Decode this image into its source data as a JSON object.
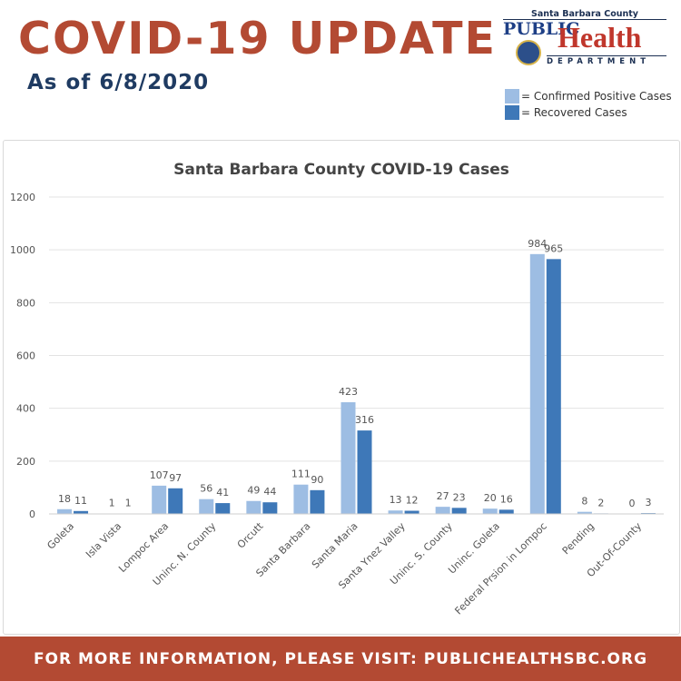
{
  "header": {
    "title": "COVID-19 UPDATE",
    "subtitle": "As of 6/8/2020"
  },
  "logo": {
    "county": "Santa Barbara County",
    "public": "PUBLIC",
    "health": "Health",
    "department": "DEPARTMENT"
  },
  "legend": {
    "confirmed": "= Confirmed Positive Cases",
    "recovered": "= Recovered Cases"
  },
  "colors": {
    "confirmed": "#9dbde3",
    "recovered": "#3e78b8",
    "brand_red": "#b34a33",
    "brand_navy": "#1f3b62"
  },
  "chart_data": {
    "type": "bar",
    "title": "Santa Barbara County COVID-19 Cases",
    "xlabel": "",
    "ylabel": "",
    "ylim": [
      0,
      1200
    ],
    "yticks": [
      0,
      200,
      400,
      600,
      800,
      1000,
      1200
    ],
    "grid": true,
    "categories": [
      "Goleta",
      "Isla Vista",
      "Lompoc Area",
      "Uninc. N. County",
      "Orcutt",
      "Santa Barbara",
      "Santa Maria",
      "Santa Ynez Valley",
      "Uninc. S. County",
      "Uninc. Goleta",
      "Federal Prsion in Lompoc",
      "Pending",
      "Out-Of-County"
    ],
    "series": [
      {
        "key": "confirmed",
        "values": [
          18,
          1,
          107,
          56,
          49,
          111,
          423,
          13,
          27,
          20,
          984,
          8,
          0
        ]
      },
      {
        "key": "recovered",
        "values": [
          11,
          1,
          97,
          41,
          44,
          90,
          316,
          12,
          23,
          16,
          965,
          2,
          3
        ]
      }
    ]
  },
  "footer": {
    "text": "FOR MORE INFORMATION, PLEASE VISIT: PUBLICHEALTHSBC.ORG"
  }
}
